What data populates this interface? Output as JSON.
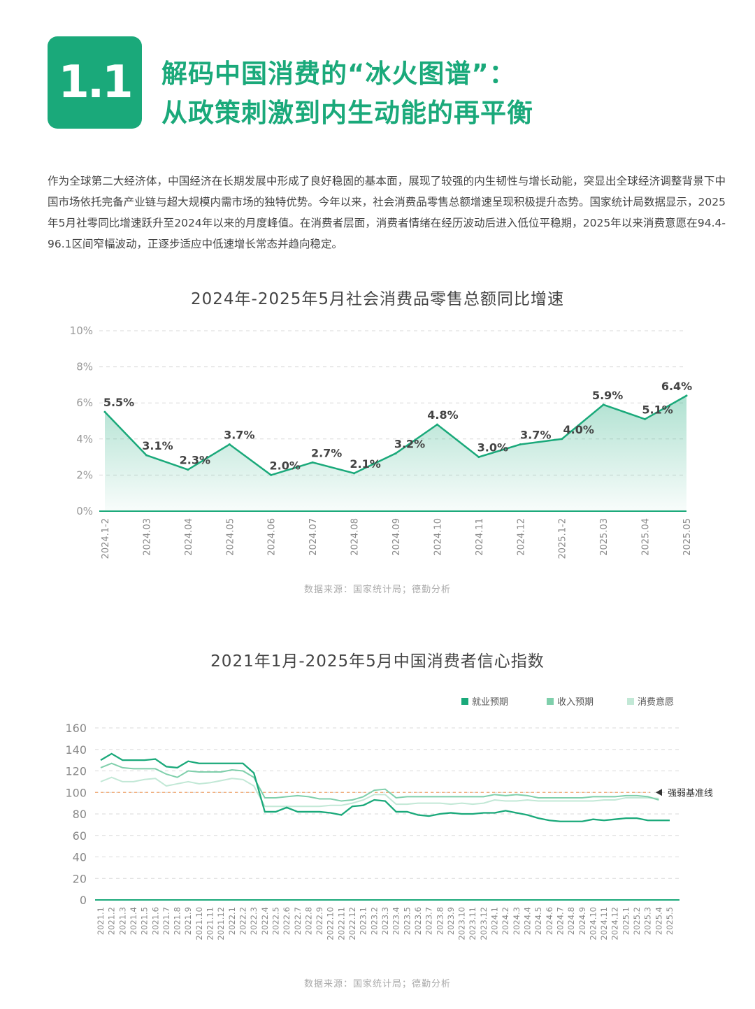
{
  "header": {
    "badge": "1.1",
    "title_line1": "解码中国消费的“冰火图谱”：",
    "title_line2": "从政策刺激到内生动能的再平衡"
  },
  "intro": "作为全球第二大经济体，中国经济在长期发展中形成了良好稳固的基本面，展现了较强的内生韧性与增长动能，突显出全球经济调整背景下中国市场依托完备产业链与超大规模内需市场的独特优势。今年以来，社会消费品零售总额增速呈现积极提升态势。国家统计局数据显示，2025年5月社零同比增速跃升至2024年以来的月度峰值。在消费者层面，消费者情绪在经历波动后进入低位平稳期，2025年以来消费意愿在94.4-96.1区间窄幅波动，正逐步适应中低速增长常态并趋向稳定。",
  "colors": {
    "accent": "#1aa97a",
    "series2": "#7fcfab",
    "series3": "#c2e8d6",
    "baseline": "#f0a36a"
  },
  "chart_data": [
    {
      "type": "area",
      "title": "2024年-2025年5月社会消费品零售总额同比增速",
      "categories": [
        "2024.1-2",
        "2024.03",
        "2024.04",
        "2024.05",
        "2024.06",
        "2024.07",
        "2024.08",
        "2024.09",
        "2024.10",
        "2024.11",
        "2024.12",
        "2025.1-2",
        "2025.03",
        "2025.04",
        "2025.05"
      ],
      "values": [
        5.5,
        3.1,
        2.3,
        3.7,
        2.0,
        2.7,
        2.1,
        3.2,
        4.8,
        3.0,
        3.7,
        4.0,
        5.9,
        5.1,
        6.4
      ],
      "value_labels": [
        "5.5%",
        "3.1%",
        "2.3%",
        "3.7%",
        "2.0%",
        "2.7%",
        "2.1%",
        "3.2%",
        "4.8%",
        "3.0%",
        "3.7%",
        "4.0%",
        "5.9%",
        "5.1%",
        "6.4%"
      ],
      "yticks": [
        "0%",
        "2%",
        "4%",
        "6%",
        "8%",
        "10%"
      ],
      "ylim": [
        0,
        10
      ],
      "grid": true,
      "source": "数据来源：国家统计局；德勤分析"
    },
    {
      "type": "line",
      "title": "2021年1月-2025年5月中国消费者信心指数",
      "categories": [
        "2021.1",
        "2021.2",
        "2021.3",
        "2021.4",
        "2021.5",
        "2021.6",
        "2021.7",
        "2021.8",
        "2021.9",
        "2021.10",
        "2021.11",
        "2021.12",
        "2022.1",
        "2022.2",
        "2022.3",
        "2022.4",
        "2022.5",
        "2022.6",
        "2022.7",
        "2022.8",
        "2022.9",
        "2022.10",
        "2022.11",
        "2022.12",
        "2023.1",
        "2023.2",
        "2023.3",
        "2023.4",
        "2023.5",
        "2023.6",
        "2023.7",
        "2023.8",
        "2023.9",
        "2023.10",
        "2023.11",
        "2023.12",
        "2024.1",
        "2024.2",
        "2024.3",
        "2024.4",
        "2024.5",
        "2024.6",
        "2024.7",
        "2024.8",
        "2024.9",
        "2024.10",
        "2024.11",
        "2024.12",
        "2025.1",
        "2025.2",
        "2025.3",
        "2025.4",
        "2025.5"
      ],
      "series": [
        {
          "name": "就业预期",
          "values": [
            130,
            136,
            130,
            130,
            130,
            131,
            124,
            123,
            129,
            127,
            127,
            127,
            127,
            127,
            118,
            82,
            82,
            86,
            82,
            82,
            82,
            81,
            79,
            87,
            88,
            93,
            92,
            82,
            82,
            79,
            78,
            80,
            81,
            80,
            80,
            81,
            81,
            83,
            81,
            79,
            76,
            74,
            73,
            73,
            73,
            75,
            74,
            75,
            76,
            76,
            74,
            74,
            74
          ]
        },
        {
          "name": "收入预期",
          "values": [
            123,
            127,
            123,
            122,
            122,
            122,
            117,
            114,
            120,
            119,
            119,
            119,
            121,
            120,
            114,
            95,
            95,
            96,
            97,
            96,
            94,
            94,
            92,
            93,
            96,
            102,
            103,
            95,
            96,
            96,
            96,
            96,
            96,
            96,
            96,
            96,
            98,
            97,
            98,
            97,
            95,
            95,
            95,
            95,
            95,
            96,
            96,
            96,
            97,
            97,
            96,
            93,
            null
          ]
        },
        {
          "name": "消费意愿",
          "values": [
            110,
            114,
            110,
            110,
            112,
            113,
            106,
            108,
            110,
            108,
            109,
            111,
            113,
            112,
            106,
            87,
            87,
            87,
            87,
            87,
            87,
            88,
            88,
            90,
            93,
            98,
            98,
            89,
            89,
            90,
            90,
            90,
            89,
            90,
            89,
            90,
            93,
            92,
            92,
            93,
            92,
            92,
            92,
            92,
            92,
            92,
            93,
            93,
            95,
            95,
            95,
            94.4,
            null
          ]
        }
      ],
      "baseline_value": 100,
      "baseline_label": "强弱基准线",
      "yticks": [
        "0",
        "20",
        "40",
        "60",
        "80",
        "100",
        "120",
        "140",
        "160"
      ],
      "ylim": [
        0,
        160
      ],
      "legend_position": "top-right",
      "grid": true,
      "source": "数据来源：国家统计局；德勤分析"
    }
  ]
}
